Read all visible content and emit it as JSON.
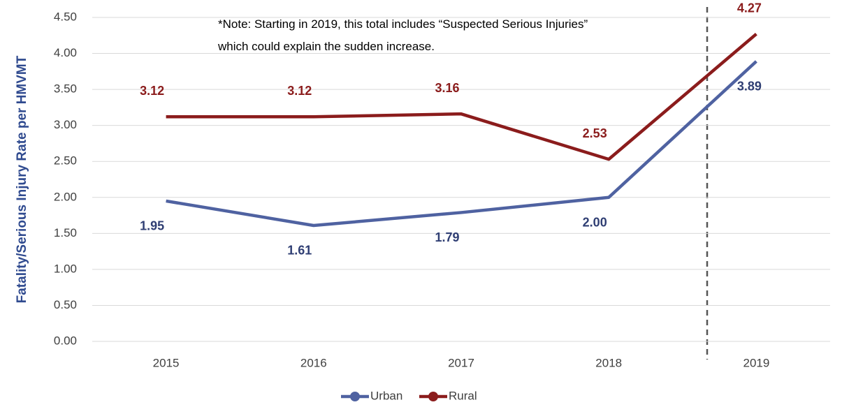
{
  "chart_data": {
    "type": "line",
    "y_label": "Fatality/Serious Injury Rate per HMVMT",
    "annotation": "*Note: Starting in 2019, this total includes “Suspected Serious Injuries” which could explain the sudden increase.",
    "categories": [
      "2015",
      "2016",
      "2017",
      "2018",
      "2019"
    ],
    "series": [
      {
        "name": "Urban",
        "color": "#4f62a1",
        "label_color": "#2f3e73",
        "values": [
          1.95,
          1.61,
          1.79,
          2.0,
          3.89
        ],
        "value_labels": [
          "1.95",
          "1.61",
          "1.79",
          "2.00",
          "3.89"
        ]
      },
      {
        "name": "Rural",
        "color": "#8b1c1c",
        "label_color": "#8b1c1c",
        "values": [
          3.12,
          3.12,
          3.16,
          2.53,
          4.27
        ],
        "value_labels": [
          "3.12",
          "3.12",
          "3.16",
          "2.53",
          "4.27"
        ]
      }
    ],
    "ylim": [
      0,
      4.5
    ],
    "yticks": [
      {
        "value": 0,
        "label": "0.00"
      },
      {
        "value": 0.5,
        "label": "0.50"
      },
      {
        "value": 1,
        "label": "1.00"
      },
      {
        "value": 1.5,
        "label": "1.50"
      },
      {
        "value": 2,
        "label": "2.00"
      },
      {
        "value": 2.5,
        "label": "2.50"
      },
      {
        "value": 3,
        "label": "3.00"
      },
      {
        "value": 3.5,
        "label": "3.50"
      },
      {
        "value": 4,
        "label": "4.00"
      },
      {
        "value": 4.5,
        "label": "4.50"
      }
    ],
    "grid": true,
    "legend": "bottom"
  }
}
